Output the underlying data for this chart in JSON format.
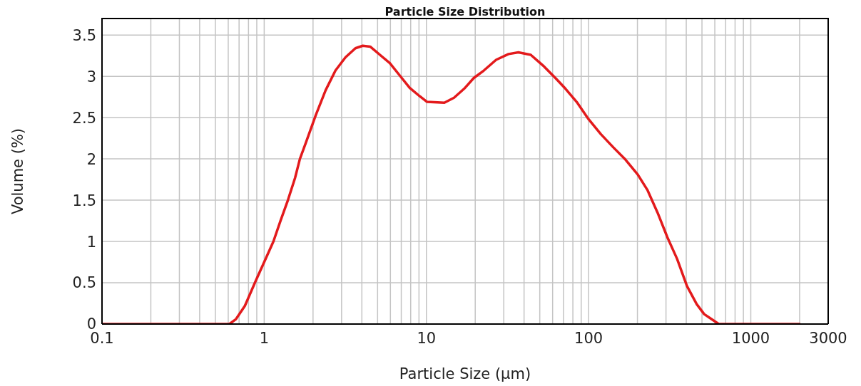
{
  "chart_data": {
    "type": "line",
    "title": "Particle Size Distribution",
    "xlabel": "Particle Size (µm)",
    "ylabel": "Volume (%)",
    "x": [
      0.1,
      0.61,
      0.67,
      0.76,
      0.89,
      1.01,
      1.14,
      1.26,
      1.4,
      1.55,
      1.66,
      1.81,
      2.08,
      2.39,
      2.75,
      3.17,
      3.65,
      4.05,
      4.5,
      5.17,
      5.95,
      6.85,
      7.89,
      9.08,
      10.1,
      12.9,
      14.8,
      17.1,
      19.6,
      22.6,
      26.9,
      32.1,
      36.9,
      44,
      52.4,
      62.4,
      72,
      84.4,
      100,
      119,
      142,
      169,
      201,
      231,
      266,
      306,
      351,
      404,
      464,
      516,
      572,
      635,
      2000
    ],
    "series": [
      {
        "color": "#e31a1c",
        "values": [
          0,
          0,
          0.06,
          0.22,
          0.53,
          0.77,
          1.0,
          1.25,
          1.5,
          1.77,
          2.0,
          2.2,
          2.53,
          2.83,
          3.07,
          3.23,
          3.34,
          3.37,
          3.36,
          3.26,
          3.16,
          3.01,
          2.86,
          2.76,
          2.69,
          2.68,
          2.74,
          2.85,
          2.98,
          3.07,
          3.2,
          3.27,
          3.29,
          3.26,
          3.13,
          2.98,
          2.85,
          2.69,
          2.48,
          2.3,
          2.14,
          1.99,
          1.81,
          1.62,
          1.35,
          1.05,
          0.79,
          0.46,
          0.24,
          0.12,
          0.06,
          0,
          0
        ]
      }
    ],
    "xlim": [
      0.1,
      3000
    ],
    "ylim": [
      0,
      3.7
    ],
    "xticks": [
      0.1,
      {
        "value": 0.2,
        "label": null
      },
      {
        "value": 0.3,
        "label": null
      },
      {
        "value": 0.4,
        "label": null
      },
      {
        "value": 0.5,
        "label": null
      },
      {
        "value": 0.6,
        "label": null
      },
      {
        "value": 0.7,
        "label": null
      },
      {
        "value": 0.8,
        "label": null
      },
      {
        "value": 0.9,
        "label": null
      },
      1,
      {
        "value": 2,
        "label": null
      },
      {
        "value": 3,
        "label": null
      },
      {
        "value": 4,
        "label": null
      },
      {
        "value": 5,
        "label": null
      },
      {
        "value": 6,
        "label": null
      },
      {
        "value": 7,
        "label": null
      },
      {
        "value": 8,
        "label": null
      },
      {
        "value": 9,
        "label": null
      },
      10,
      {
        "value": 20,
        "label": null
      },
      {
        "value": 30,
        "label": null
      },
      {
        "value": 40,
        "label": null
      },
      {
        "value": 50,
        "label": null
      },
      {
        "value": 60,
        "label": null
      },
      {
        "value": 70,
        "label": null
      },
      {
        "value": 80,
        "label": null
      },
      {
        "value": 90,
        "label": null
      },
      100,
      {
        "value": 200,
        "label": null
      },
      {
        "value": 300,
        "label": null
      },
      {
        "value": 400,
        "label": null
      },
      {
        "value": 500,
        "label": null
      },
      {
        "value": 600,
        "label": null
      },
      {
        "value": 700,
        "label": null
      },
      {
        "value": 800,
        "label": null
      },
      {
        "value": 900,
        "label": null
      },
      1000,
      {
        "value": 2000,
        "label": null
      },
      3000
    ],
    "yticks": [
      0,
      0.5,
      1,
      1.5,
      2,
      2.5,
      3,
      3.5
    ],
    "log": "x",
    "grid": true
  }
}
